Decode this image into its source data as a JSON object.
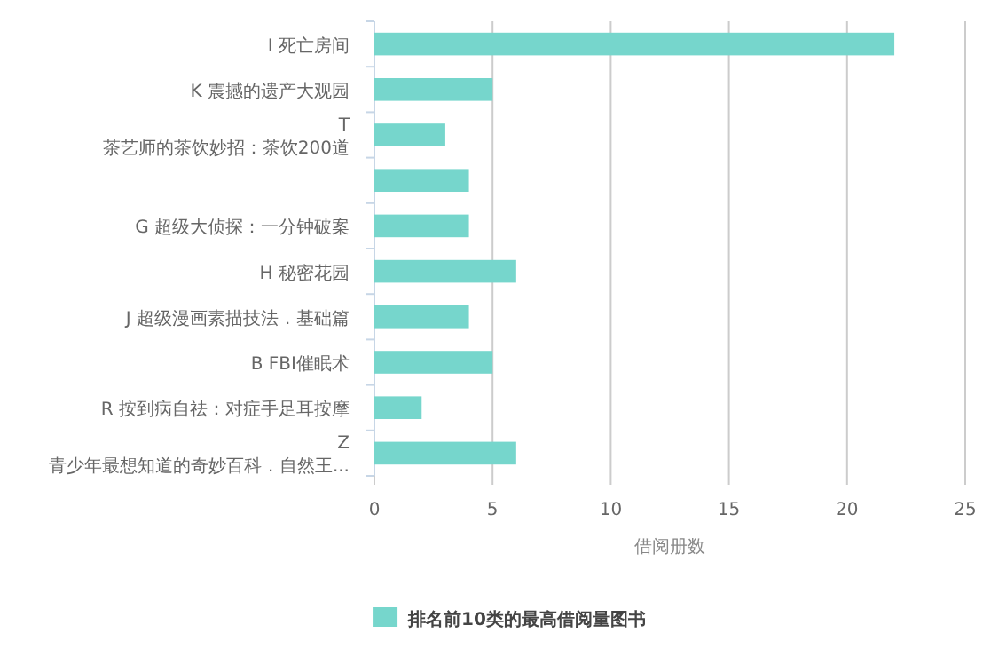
{
  "chart_data": {
    "type": "bar",
    "orientation": "horizontal",
    "categories": [
      "I 死亡房间",
      "K 震撼的遗产大观园",
      "T\n茶艺师的茶饮妙招：茶饮200道",
      null,
      "G 超级大侦探：一分钟破案",
      "H 秘密花园",
      "J 超级漫画素描技法．基础篇",
      "B FBI催眠术",
      "R 按到病自祛：对症手足耳按摩",
      "Z\n青少年最想知道的奇妙百科．自然王..."
    ],
    "series": [
      {
        "name": "排名前10类的最高借阅量图书",
        "color": "#76d6cc",
        "values": [
          22,
          5,
          3,
          4,
          4,
          6,
          4,
          5,
          2,
          6
        ]
      }
    ],
    "xlabel": "借阅册数",
    "xlim": [
      0,
      25
    ],
    "xticks": [
      0,
      5,
      10,
      15,
      20,
      25
    ],
    "grid": "x",
    "legend": "bottom"
  }
}
